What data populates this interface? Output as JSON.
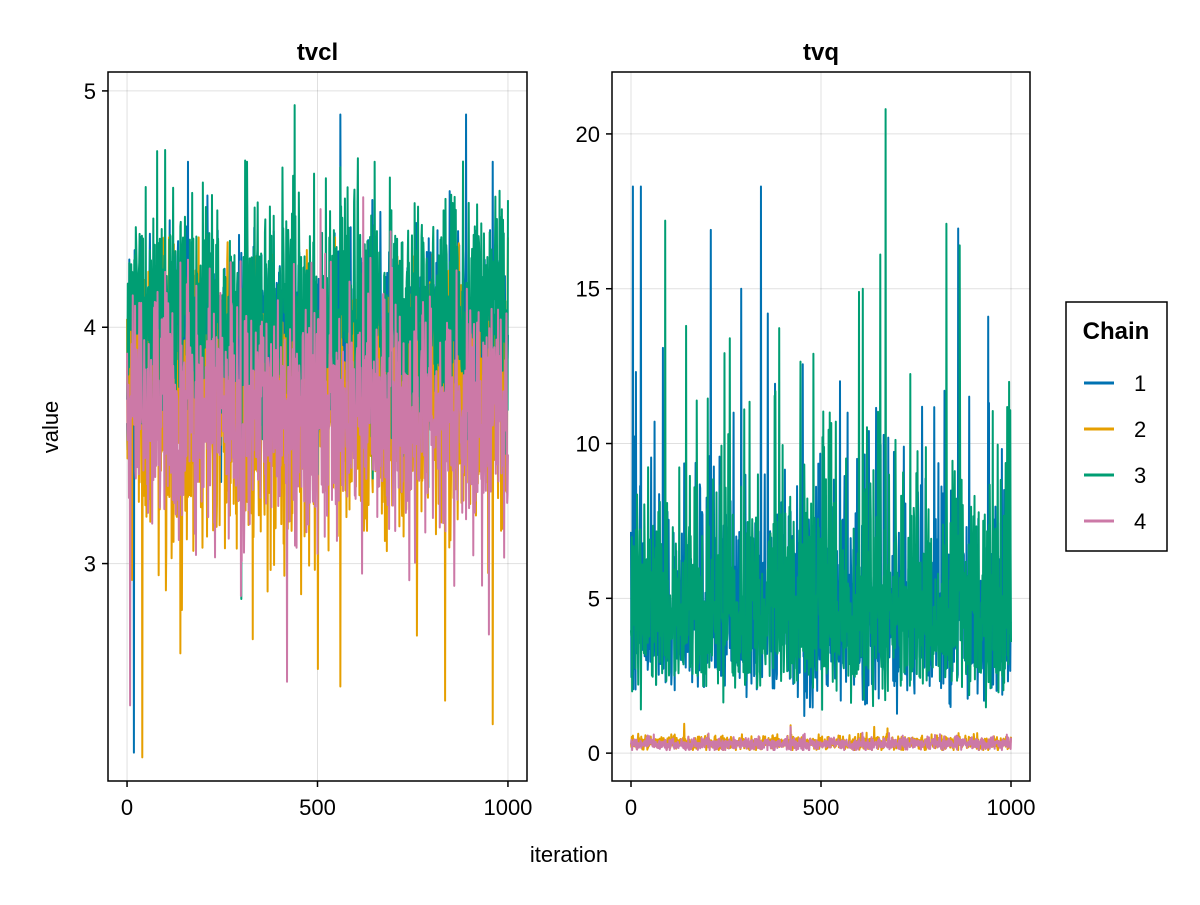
{
  "chart_data": {
    "type": "line",
    "xlabel": "iteration",
    "ylabel": "value",
    "legend": {
      "title": "Chain",
      "placement": "right",
      "entries": [
        {
          "label": "1",
          "color": "#0072B2"
        },
        {
          "label": "2",
          "color": "#E69F00"
        },
        {
          "label": "3",
          "color": "#009E73"
        },
        {
          "label": "4",
          "color": "#CC79A7"
        }
      ]
    },
    "grid": true,
    "panels": [
      {
        "title": "tvcl",
        "xlim": [
          -50,
          1050
        ],
        "ylim": [
          2.08,
          5.08
        ],
        "xticks": [
          0,
          500,
          1000
        ],
        "yticks": [
          3,
          4,
          5
        ],
        "series": [
          {
            "name": "1",
            "color": "#0072B2",
            "iterations": 1000,
            "mean": 3.95,
            "spread": 0.22,
            "min": 2.2,
            "max": 4.9,
            "peaks": [
              [
                18,
                2.2
              ],
              [
                160,
                4.7
              ],
              [
                560,
                4.9
              ],
              [
                890,
                4.9
              ],
              [
                960,
                4.7
              ]
            ]
          },
          {
            "name": "2",
            "color": "#E69F00",
            "iterations": 1000,
            "mean": 3.65,
            "spread": 0.3,
            "min": 2.18,
            "max": 4.38,
            "peaks": [
              [
                40,
                2.18
              ],
              [
                140,
                2.62
              ],
              [
                330,
                2.68
              ],
              [
                560,
                2.48
              ],
              [
                835,
                2.42
              ],
              [
                960,
                2.32
              ],
              [
                1000,
                4.38
              ]
            ]
          },
          {
            "name": "3",
            "color": "#009E73",
            "iterations": 1000,
            "mean": 4.05,
            "spread": 0.25,
            "min": 2.85,
            "max": 4.94,
            "peaks": [
              [
                440,
                4.94
              ],
              [
                100,
                4.75
              ],
              [
                300,
                2.85
              ],
              [
                650,
                4.7
              ]
            ]
          },
          {
            "name": "4",
            "color": "#CC79A7",
            "iterations": 1000,
            "mean": 3.65,
            "spread": 0.25,
            "min": 2.4,
            "max": 4.5,
            "peaks": [
              [
                8,
                2.4
              ],
              [
                420,
                2.5
              ],
              [
                950,
                2.7
              ],
              [
                620,
                4.55
              ]
            ]
          }
        ]
      },
      {
        "title": "tvq",
        "xlim": [
          -50,
          1050
        ],
        "ylim": [
          -0.9,
          22.0
        ],
        "xticks": [
          0,
          500,
          1000
        ],
        "yticks": [
          0,
          5,
          10,
          15,
          20
        ],
        "series": [
          {
            "name": "1",
            "color": "#0072B2",
            "iterations": 1000,
            "mean": 4.6,
            "spread": 2.0,
            "min": 1.2,
            "max": 18.3,
            "peaks": [
              [
                5,
                18.3
              ],
              [
                210,
                16.9
              ],
              [
                290,
                15.0
              ],
              [
                360,
                14.2
              ],
              [
                940,
                14.1
              ],
              [
                570,
                11.0
              ]
            ]
          },
          {
            "name": "2",
            "color": "#E69F00",
            "iterations": 1000,
            "mean": 0.33,
            "spread": 0.12,
            "min": 0.1,
            "max": 0.95,
            "peaks": [
              [
                140,
                0.95
              ],
              [
                420,
                0.9
              ],
              [
                640,
                0.85
              ]
            ]
          },
          {
            "name": "3",
            "color": "#009E73",
            "iterations": 1000,
            "mean": 4.6,
            "spread": 2.1,
            "min": 1.4,
            "max": 20.8,
            "peaks": [
              [
                670,
                20.8
              ],
              [
                90,
                17.2
              ],
              [
                830,
                17.1
              ],
              [
                145,
                13.8
              ],
              [
                260,
                13.4
              ],
              [
                480,
                12.9
              ],
              [
                600,
                14.9
              ],
              [
                865,
                16.4
              ],
              [
                610,
                15.0
              ]
            ]
          },
          {
            "name": "4",
            "color": "#CC79A7",
            "iterations": 1000,
            "mean": 0.3,
            "spread": 0.1,
            "min": 0.1,
            "max": 0.85,
            "peaks": [
              [
                420,
                0.85
              ],
              [
                60,
                0.6
              ]
            ]
          }
        ]
      }
    ]
  }
}
